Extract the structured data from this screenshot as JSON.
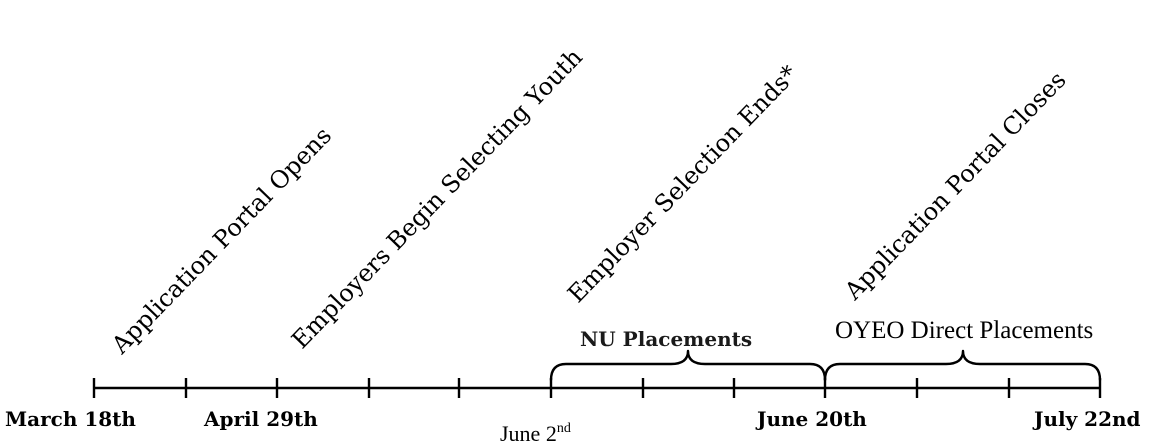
{
  "events": [
    {
      "label": "Application Portal Opens"
    },
    {
      "label": "Employers Begin Selecting Youth"
    },
    {
      "label": "Employer Selection Ends*"
    },
    {
      "label": "Application Portal Closes"
    }
  ],
  "dates": {
    "march18": "March 18th",
    "april29": "April 29th",
    "june2_base": "June 2",
    "june2_sup": "nd",
    "june20": "June 20th",
    "july22": "July 22nd"
  },
  "periods": {
    "nu": "NU Placements",
    "oyeo": "OYEO Direct Placements"
  }
}
